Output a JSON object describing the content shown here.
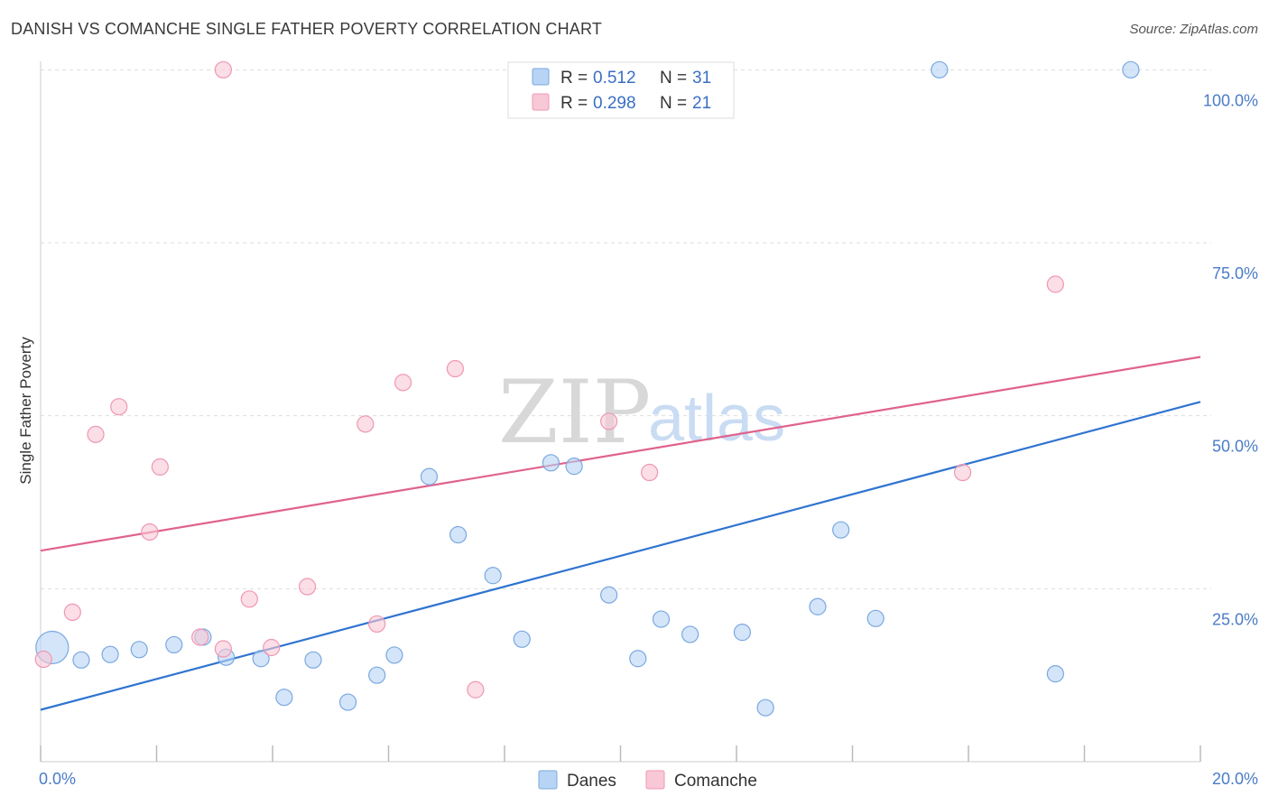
{
  "title": "DANISH VS COMANCHE SINGLE FATHER POVERTY CORRELATION CHART",
  "source": "Source: ZipAtlas.com",
  "watermark": {
    "zip": "ZIP",
    "atlas": "atlas"
  },
  "colors": {
    "danes_fill": "#b8d4f5",
    "danes_stroke": "#7aa8e0",
    "danes_line": "#2f74d0",
    "comanche_fill": "#f9c8d6",
    "comanche_stroke": "#ef97b3",
    "comanche_line": "#e0628d",
    "grid": "#dddddd",
    "tick_text": "#4a7cc7"
  },
  "legend": {
    "rows": [
      {
        "r_label": "R =",
        "r_value": "0.512",
        "n_label": "N =",
        "n_value": "31"
      },
      {
        "r_label": "R =",
        "r_value": "0.298",
        "n_label": "N =",
        "n_value": "21"
      }
    ]
  },
  "chart_data": {
    "type": "scatter",
    "title": "DANISH VS COMANCHE SINGLE FATHER POVERTY CORRELATION CHART",
    "xlabel": "",
    "ylabel": "Single Father Poverty",
    "xlim": [
      0,
      20
    ],
    "ylim": [
      0,
      102
    ],
    "x_tick_labels": [
      "0.0%",
      "20.0%"
    ],
    "y_ticks": [
      25,
      50,
      75,
      100
    ],
    "y_tick_labels": [
      "25.0%",
      "50.0%",
      "75.0%",
      "100.0%"
    ],
    "legend_position": "top-center",
    "series": [
      {
        "name": "Danes",
        "r": 0.512,
        "n": 31,
        "trend": {
          "x": [
            0,
            20
          ],
          "y": [
            7.5,
            52
          ]
        },
        "points": [
          {
            "x": 0.2,
            "y": 16.5,
            "big": true
          },
          {
            "x": 0.7,
            "y": 14.7
          },
          {
            "x": 1.2,
            "y": 15.5
          },
          {
            "x": 1.7,
            "y": 16.2
          },
          {
            "x": 2.3,
            "y": 16.9
          },
          {
            "x": 2.8,
            "y": 18.0
          },
          {
            "x": 3.2,
            "y": 15.1
          },
          {
            "x": 3.8,
            "y": 14.9
          },
          {
            "x": 4.2,
            "y": 9.3
          },
          {
            "x": 4.7,
            "y": 14.7
          },
          {
            "x": 5.3,
            "y": 8.6
          },
          {
            "x": 5.8,
            "y": 12.5
          },
          {
            "x": 6.1,
            "y": 15.4
          },
          {
            "x": 6.7,
            "y": 41.2
          },
          {
            "x": 7.2,
            "y": 32.8
          },
          {
            "x": 7.8,
            "y": 26.9
          },
          {
            "x": 8.3,
            "y": 17.7
          },
          {
            "x": 8.8,
            "y": 43.2
          },
          {
            "x": 9.2,
            "y": 42.7
          },
          {
            "x": 9.8,
            "y": 24.1
          },
          {
            "x": 10.3,
            "y": 14.9
          },
          {
            "x": 10.7,
            "y": 20.6
          },
          {
            "x": 11.2,
            "y": 18.4
          },
          {
            "x": 12.1,
            "y": 18.7
          },
          {
            "x": 12.5,
            "y": 7.8
          },
          {
            "x": 13.4,
            "y": 22.4
          },
          {
            "x": 13.8,
            "y": 33.5
          },
          {
            "x": 14.4,
            "y": 20.7
          },
          {
            "x": 15.5,
            "y": 100.0
          },
          {
            "x": 17.5,
            "y": 12.7
          },
          {
            "x": 18.8,
            "y": 100.0
          }
        ]
      },
      {
        "name": "Comanche",
        "r": 0.298,
        "n": 21,
        "trend": {
          "x": [
            0,
            20
          ],
          "y": [
            30.5,
            58.5
          ]
        },
        "points": [
          {
            "x": 0.05,
            "y": 14.8
          },
          {
            "x": 0.55,
            "y": 21.6
          },
          {
            "x": 0.95,
            "y": 47.3
          },
          {
            "x": 1.35,
            "y": 51.3
          },
          {
            "x": 1.88,
            "y": 33.2
          },
          {
            "x": 2.06,
            "y": 42.6
          },
          {
            "x": 2.75,
            "y": 18.0
          },
          {
            "x": 3.15,
            "y": 100.0
          },
          {
            "x": 3.15,
            "y": 16.3
          },
          {
            "x": 3.6,
            "y": 23.5
          },
          {
            "x": 3.98,
            "y": 16.5
          },
          {
            "x": 4.6,
            "y": 25.3
          },
          {
            "x": 5.6,
            "y": 48.8
          },
          {
            "x": 5.8,
            "y": 19.9
          },
          {
            "x": 6.25,
            "y": 54.8
          },
          {
            "x": 7.15,
            "y": 56.8
          },
          {
            "x": 7.5,
            "y": 10.4
          },
          {
            "x": 9.8,
            "y": 49.2
          },
          {
            "x": 10.5,
            "y": 41.8
          },
          {
            "x": 15.9,
            "y": 41.8
          },
          {
            "x": 17.5,
            "y": 69.0
          }
        ]
      }
    ]
  }
}
